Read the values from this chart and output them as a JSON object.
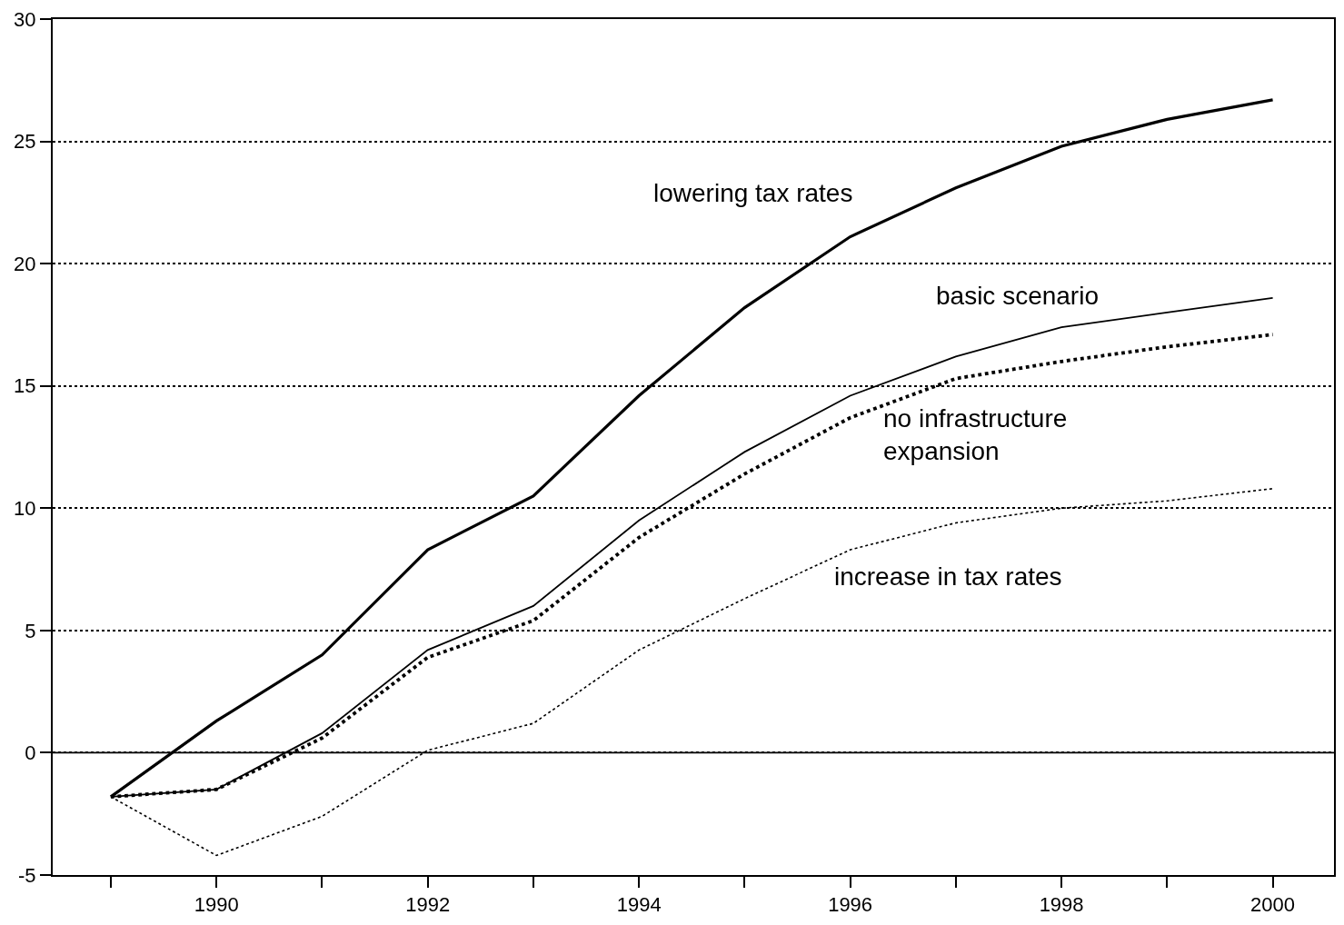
{
  "chart_data": {
    "type": "line",
    "x": [
      1989,
      1990,
      1991,
      1992,
      1993,
      1994,
      1995,
      1996,
      1997,
      1998,
      1999,
      2000
    ],
    "series": [
      {
        "name": "lowering tax rates",
        "color": "#000000",
        "line_style": "solid",
        "values": [
          -1.8,
          1.3,
          4.0,
          8.3,
          10.5,
          14.6,
          18.2,
          21.1,
          23.1,
          24.8,
          25.9,
          26.7
        ]
      },
      {
        "name": "basic scenario",
        "color": "#000000",
        "line_style": "solid",
        "values": [
          -1.8,
          -1.5,
          0.8,
          4.2,
          6.0,
          9.5,
          12.3,
          14.6,
          16.2,
          17.4,
          18.0,
          18.6
        ]
      },
      {
        "name": "no infrastructure\nexpansion",
        "color": "#000000",
        "line_style": "dotted",
        "values": [
          -1.8,
          -1.5,
          0.6,
          3.9,
          5.4,
          8.8,
          11.4,
          13.7,
          15.3,
          16.0,
          16.6,
          17.1
        ]
      },
      {
        "name": "increase in tax rates",
        "color": "#000000",
        "line_style": "dotted",
        "values": [
          -1.8,
          -4.2,
          -2.6,
          0.1,
          1.2,
          4.2,
          6.3,
          8.3,
          9.4,
          10.0,
          10.3,
          10.8
        ]
      }
    ],
    "xlim": [
      1988.45,
      2000.58
    ],
    "xticks": [
      {
        "value": 1989,
        "label": null
      },
      1990,
      {
        "value": 1991,
        "label": null
      },
      1992,
      {
        "value": 1993,
        "label": null
      },
      1994,
      {
        "value": 1995,
        "label": null
      },
      1996,
      {
        "value": 1997,
        "label": null
      },
      1998,
      {
        "value": 1999,
        "label": null
      },
      2000
    ],
    "ylim": [
      -5,
      30
    ],
    "yticks": [
      -5,
      0,
      5,
      10,
      15,
      20,
      25,
      30
    ],
    "ref_lines": [
      {
        "axis": "y",
        "value": 0,
        "color": "#000000",
        "line_style": "solid"
      }
    ],
    "grid": "y",
    "marker": "none"
  }
}
